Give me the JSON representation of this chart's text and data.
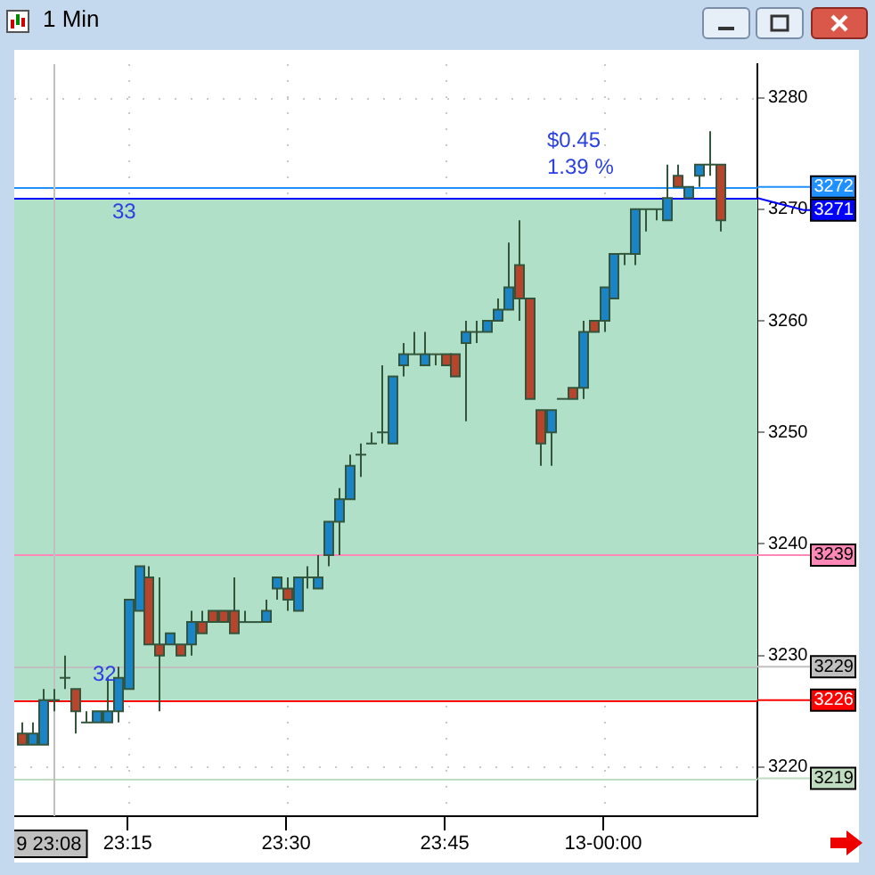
{
  "chart_data": {
    "type": "candlestick",
    "title": "1 Min",
    "x": [
      23.0833,
      23.1,
      23.1167,
      23.1333,
      23.15,
      23.1667,
      23.1833,
      23.2,
      23.2167,
      23.2333,
      23.25,
      23.2667,
      23.2833,
      23.3,
      23.3167,
      23.3333,
      23.35,
      23.3667,
      23.3833,
      23.4,
      23.4167,
      23.4333,
      23.45,
      23.4667,
      23.4833,
      23.5,
      23.5167,
      23.5333,
      23.55,
      23.5667,
      23.5833,
      23.6,
      23.6167,
      23.6333,
      23.65,
      23.6667,
      23.6833,
      23.7,
      23.7167,
      23.7333,
      23.75,
      23.7667,
      23.7833,
      23.8,
      23.8167,
      23.8333,
      23.85,
      23.8667,
      23.8833,
      23.9,
      23.9167,
      23.9333,
      23.95,
      23.9667,
      23.9833,
      24,
      24.0167,
      24.0333,
      24.05,
      24.0667,
      24.0833,
      24.1,
      24.1167,
      24.1333,
      24.15,
      24.1667,
      24.1833
    ],
    "ohlc": [
      [
        3223,
        3224,
        3222,
        3222
      ],
      [
        3222,
        3224,
        3222,
        3223
      ],
      [
        3222,
        3227,
        3222,
        3226
      ],
      [
        3226,
        3227,
        3225,
        3226
      ],
      [
        3228,
        3230,
        3227,
        3228
      ],
      [
        3227,
        3227,
        3223,
        3225
      ],
      [
        3224,
        3225,
        3224,
        3224
      ],
      [
        3224,
        3225,
        3224,
        3225
      ],
      [
        3224,
        3228,
        3224,
        3225
      ],
      [
        3225,
        3229,
        3224,
        3228
      ],
      [
        3227,
        3235,
        3227,
        3235
      ],
      [
        3234,
        3238,
        3234,
        3238
      ],
      [
        3237,
        3238,
        3231,
        3231
      ],
      [
        3231,
        3237,
        3225,
        3230
      ],
      [
        3231,
        3232,
        3231,
        3232
      ],
      [
        3231,
        3231,
        3230,
        3230
      ],
      [
        3231,
        3234,
        3230,
        3233
      ],
      [
        3233,
        3234,
        3232,
        3232
      ],
      [
        3234,
        3234,
        3233,
        3233
      ],
      [
        3234,
        3234,
        3233,
        3233
      ],
      [
        3234,
        3237,
        3232,
        3232
      ],
      [
        3233,
        3234,
        3233,
        3233
      ],
      [
        3233,
        3233,
        3233,
        3233
      ],
      [
        3233,
        3235,
        3233,
        3234
      ],
      [
        3236,
        3237,
        3235,
        3237
      ],
      [
        3236,
        3237,
        3234,
        3235
      ],
      [
        3234,
        3237,
        3234,
        3237
      ],
      [
        3237,
        3238,
        3236,
        3237
      ],
      [
        3236,
        3239,
        3236,
        3237
      ],
      [
        3239,
        3242,
        3238,
        3242
      ],
      [
        3242,
        3245,
        3239,
        3244
      ],
      [
        3244,
        3248,
        3244,
        3247
      ],
      [
        3248,
        3249,
        3246,
        3248
      ],
      [
        3249,
        3250,
        3249,
        3249
      ],
      [
        3250,
        3256,
        3249,
        3250
      ],
      [
        3249,
        3255,
        3249,
        3255
      ],
      [
        3256,
        3258,
        3255,
        3257
      ],
      [
        3257,
        3259,
        3257,
        3257
      ],
      [
        3256,
        3259,
        3256,
        3257
      ],
      [
        3257,
        3257,
        3256,
        3257
      ],
      [
        3257,
        3257,
        3256,
        3256
      ],
      [
        3257,
        3257,
        3255,
        3255
      ],
      [
        3258,
        3260,
        3251,
        3259
      ],
      [
        3259,
        3260,
        3258,
        3259
      ],
      [
        3259,
        3260,
        3259,
        3260
      ],
      [
        3260,
        3262,
        3260,
        3261
      ],
      [
        3261,
        3267,
        3261,
        3263
      ],
      [
        3265,
        3269,
        3260,
        3262
      ],
      [
        3262,
        3262,
        3253,
        3253
      ],
      [
        3252,
        3252,
        3247,
        3249
      ],
      [
        3250,
        3252,
        3247,
        3252
      ],
      [
        3253,
        3253,
        3253,
        3253
      ],
      [
        3254,
        3254,
        3253,
        3253
      ],
      [
        3254,
        3260,
        3253,
        3259
      ],
      [
        3260,
        3260,
        3259,
        3259
      ],
      [
        3260,
        3263,
        3259,
        3263
      ],
      [
        3262,
        3266,
        3262,
        3266
      ],
      [
        3266,
        3266,
        3265,
        3266
      ],
      [
        3266,
        3270,
        3265,
        3270
      ],
      [
        3270,
        3270,
        3268,
        3270
      ],
      [
        3270,
        3270,
        3269,
        3270
      ],
      [
        3269,
        3274,
        3269,
        3271
      ],
      [
        3273,
        3274,
        3272,
        3272
      ],
      [
        3271,
        3272,
        3271,
        3272
      ],
      [
        3273,
        3274,
        3272,
        3274
      ],
      [
        3274,
        3277,
        3273,
        3274
      ],
      [
        3274,
        3274,
        3268,
        3269
      ]
    ],
    "xlim": [
      23.0713,
      24.243
    ],
    "xticks": [
      {
        "value": 23.25,
        "label": "23:15"
      },
      {
        "value": 23.5,
        "label": "23:30"
      },
      {
        "value": 23.75,
        "label": "23:45"
      },
      {
        "value": 24,
        "label": "13-00:00"
      }
    ],
    "ylim": [
      3215.6,
      3283
    ],
    "yticks": [
      3220,
      3230,
      3240,
      3250,
      3260,
      3270,
      3280
    ],
    "grid": true,
    "bands": [
      {
        "axis": "y",
        "from": 3226,
        "to": 3271,
        "color": "#b0e0c8"
      }
    ],
    "ref_lines": [
      {
        "axis": "y",
        "value": 3272,
        "label": "3272",
        "color": "#1e90ff"
      },
      {
        "axis": "y",
        "value": 3271,
        "label": "3271",
        "color": "#0000ff"
      },
      {
        "axis": "y",
        "value": 3239,
        "label": "3239",
        "color": "#ff88b8"
      },
      {
        "axis": "y",
        "value": 3229,
        "label": "3229",
        "color": "#c0c0c0"
      },
      {
        "axis": "y",
        "value": 3226,
        "label": "3226",
        "color": "#ff0000"
      },
      {
        "axis": "y",
        "value": 3219,
        "label": "3219",
        "color": "#c0dcc0"
      },
      {
        "axis": "x",
        "value": 23.1333,
        "label": "9 23:08",
        "color": "#c0c0c0"
      }
    ],
    "annotations": [
      "33",
      "32",
      "$0.45",
      "1.39 %"
    ]
  }
}
